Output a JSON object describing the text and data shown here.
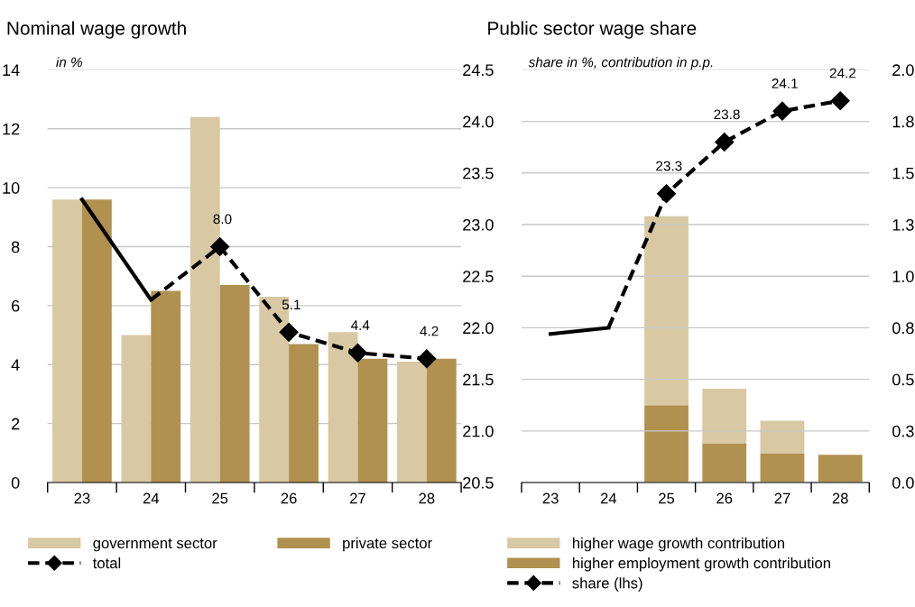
{
  "chart_data": [
    {
      "type": "bar",
      "title": "Nominal wage growth",
      "subtitle": "in %",
      "categories": [
        "23",
        "24",
        "25",
        "26",
        "27",
        "28"
      ],
      "series": [
        {
          "name": "government sector",
          "color": "#d8c8a4",
          "values": [
            9.6,
            5.0,
            12.4,
            6.3,
            5.1,
            4.1
          ]
        },
        {
          "name": "private sector",
          "color": "#b0914f",
          "values": [
            9.6,
            6.5,
            6.7,
            4.7,
            4.2,
            4.2
          ]
        },
        {
          "type": "line",
          "color": "#000000",
          "line_style": "solid",
          "values": [
            9.6,
            6.2,
            null,
            null,
            null,
            null
          ]
        },
        {
          "type": "line",
          "name": "total",
          "color": "#000000",
          "line_style": "dashed",
          "marker": "diamond",
          "values": [
            null,
            6.2,
            8.0,
            5.1,
            4.4,
            4.2
          ],
          "value_labels": [
            null,
            null,
            "8.0",
            "5.1",
            "4.4",
            "4.2"
          ]
        }
      ],
      "ylim": [
        0,
        14
      ],
      "yticks": [
        0,
        2,
        4,
        6,
        8,
        10,
        12,
        14
      ],
      "grid": "y",
      "legend": "bottom"
    },
    {
      "type": "bar",
      "title": "Public sector wage share",
      "subtitle": "share in %, contribution in p.p.",
      "categories": [
        "23",
        "24",
        "25",
        "26",
        "27",
        "28"
      ],
      "stacked": true,
      "series": [
        {
          "name": "higher employment growth contribution",
          "color": "#b0914f",
          "axis": "y2",
          "values": [
            0,
            0,
            0.375,
            0.19,
            0.14,
            0.135
          ]
        },
        {
          "name": "higher wage growth contribution",
          "color": "#d8c8a4",
          "axis": "y2",
          "values": [
            0,
            0,
            0.915,
            0.265,
            0.16,
            0
          ]
        },
        {
          "type": "line",
          "color": "#000000",
          "line_style": "solid",
          "values": [
            21.94,
            22.0,
            null,
            null,
            null,
            null
          ]
        },
        {
          "type": "line",
          "name": "share (lhs)",
          "color": "#000000",
          "line_style": "dashed",
          "marker": "diamond",
          "values": [
            null,
            22.0,
            23.3,
            23.8,
            24.1,
            24.2
          ],
          "value_labels": [
            null,
            null,
            "23.3",
            "23.8",
            "24.1",
            "24.2"
          ]
        }
      ],
      "ylim": [
        20.5,
        24.5
      ],
      "yticks": [
        {
          "value": 20.5,
          "label": "20.5"
        },
        {
          "value": 21,
          "label": "21.0"
        },
        {
          "value": 21.5,
          "label": "21.5"
        },
        {
          "value": 22,
          "label": "22.0"
        },
        {
          "value": 22.5,
          "label": "22.5"
        },
        {
          "value": 23,
          "label": "23.0"
        },
        {
          "value": 23.5,
          "label": "23.5"
        },
        {
          "value": 24,
          "label": "24.0"
        },
        {
          "value": 24.5,
          "label": "24.5"
        }
      ],
      "y2lim": [
        0,
        2
      ],
      "y2ticks": [
        {
          "value": 0,
          "label": "0.0"
        },
        {
          "value": 0.25,
          "label": "0.3"
        },
        {
          "value": 0.5,
          "label": "0.5"
        },
        {
          "value": 0.75,
          "label": "0.8"
        },
        {
          "value": 1,
          "label": "1.0"
        },
        {
          "value": 1.25,
          "label": "1.3"
        },
        {
          "value": 1.5,
          "label": "1.5"
        },
        {
          "value": 1.75,
          "label": "1.8"
        },
        {
          "value": 2,
          "label": "2.0"
        }
      ],
      "grid": "y",
      "legend": "bottom"
    }
  ]
}
